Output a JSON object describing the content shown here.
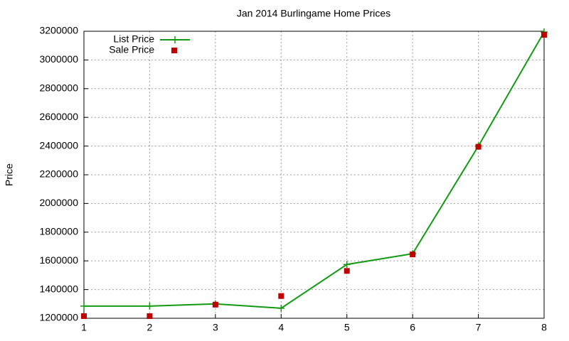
{
  "chart_data": {
    "type": "line",
    "title": "Jan 2014 Burlingame Home Prices",
    "y_label": "Price",
    "x": [
      1,
      2,
      3,
      4,
      5,
      6,
      7,
      8
    ],
    "series": [
      {
        "name": "List Price",
        "color": "#129b12",
        "marker": "plus",
        "style": "linespoints",
        "values": [
          1285000,
          1285000,
          1300000,
          1270000,
          1575000,
          1650000,
          2400000,
          3195000
        ]
      },
      {
        "name": "Sale Price",
        "color": "#c00000",
        "marker": "square",
        "style": "points",
        "values": [
          1215000,
          1215000,
          1295000,
          1355000,
          1530000,
          1645000,
          2395000,
          3175000
        ]
      }
    ],
    "xlim": [
      1,
      8
    ],
    "xticks": [
      1,
      2,
      3,
      4,
      5,
      6,
      7,
      8
    ],
    "ylim": [
      1200000,
      3200000
    ],
    "yticks": [
      1200000,
      1400000,
      1600000,
      1800000,
      2000000,
      2200000,
      2400000,
      2600000,
      2800000,
      3000000,
      3200000
    ],
    "grid": true,
    "legend": "top-left"
  }
}
